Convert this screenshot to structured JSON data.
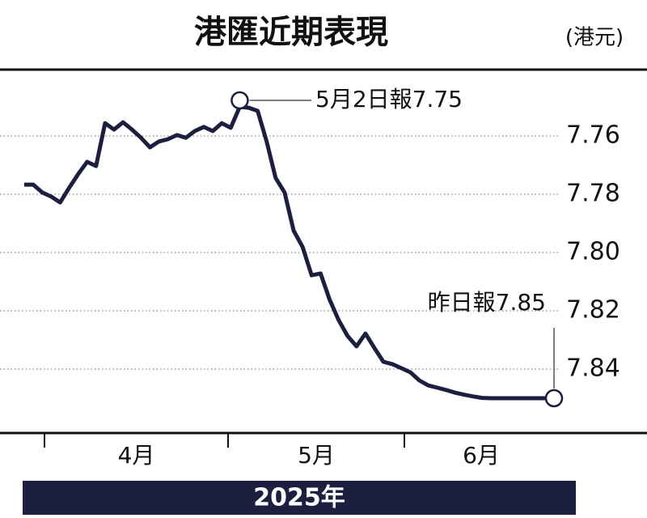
{
  "chart_data": {
    "type": "line",
    "title": "港匯近期表現",
    "unit": "(港元)",
    "year": "2025年",
    "months": [
      "4月",
      "5月",
      "6月"
    ],
    "values": [
      7.7767,
      7.7767,
      7.7794,
      7.7808,
      7.7828,
      7.7778,
      7.7731,
      7.7689,
      7.7703,
      7.7556,
      7.7578,
      7.7553,
      7.7578,
      7.7606,
      7.7639,
      7.7619,
      7.7611,
      7.7597,
      7.7606,
      7.7583,
      7.7569,
      7.7583,
      7.7556,
      7.7572,
      7.75,
      7.7503,
      7.7514,
      7.7619,
      7.7744,
      7.7794,
      7.7925,
      7.7981,
      7.8078,
      7.8072,
      7.8161,
      7.8231,
      7.8286,
      7.8322,
      7.8278,
      7.8328,
      7.8375,
      7.8383,
      7.8397,
      7.8411,
      7.8439,
      7.8456,
      7.8464,
      7.8472,
      7.8481,
      7.8488,
      7.8494,
      7.8499,
      7.85,
      7.85,
      7.85,
      7.85,
      7.85,
      7.85,
      7.85,
      7.85
    ],
    "color": "#1c1f3d",
    "ylim": [
      7.74,
      7.86
    ],
    "invert_y": true,
    "yticks": [
      7.76,
      7.78,
      {
        "value": 7.8,
        "label": "7.80"
      },
      7.82,
      7.84
    ],
    "grid": true,
    "annotations": [
      {
        "label": "5月2日報7.75",
        "value": 7.75
      },
      {
        "label": "昨日報7.85",
        "value": 7.85
      }
    ]
  }
}
